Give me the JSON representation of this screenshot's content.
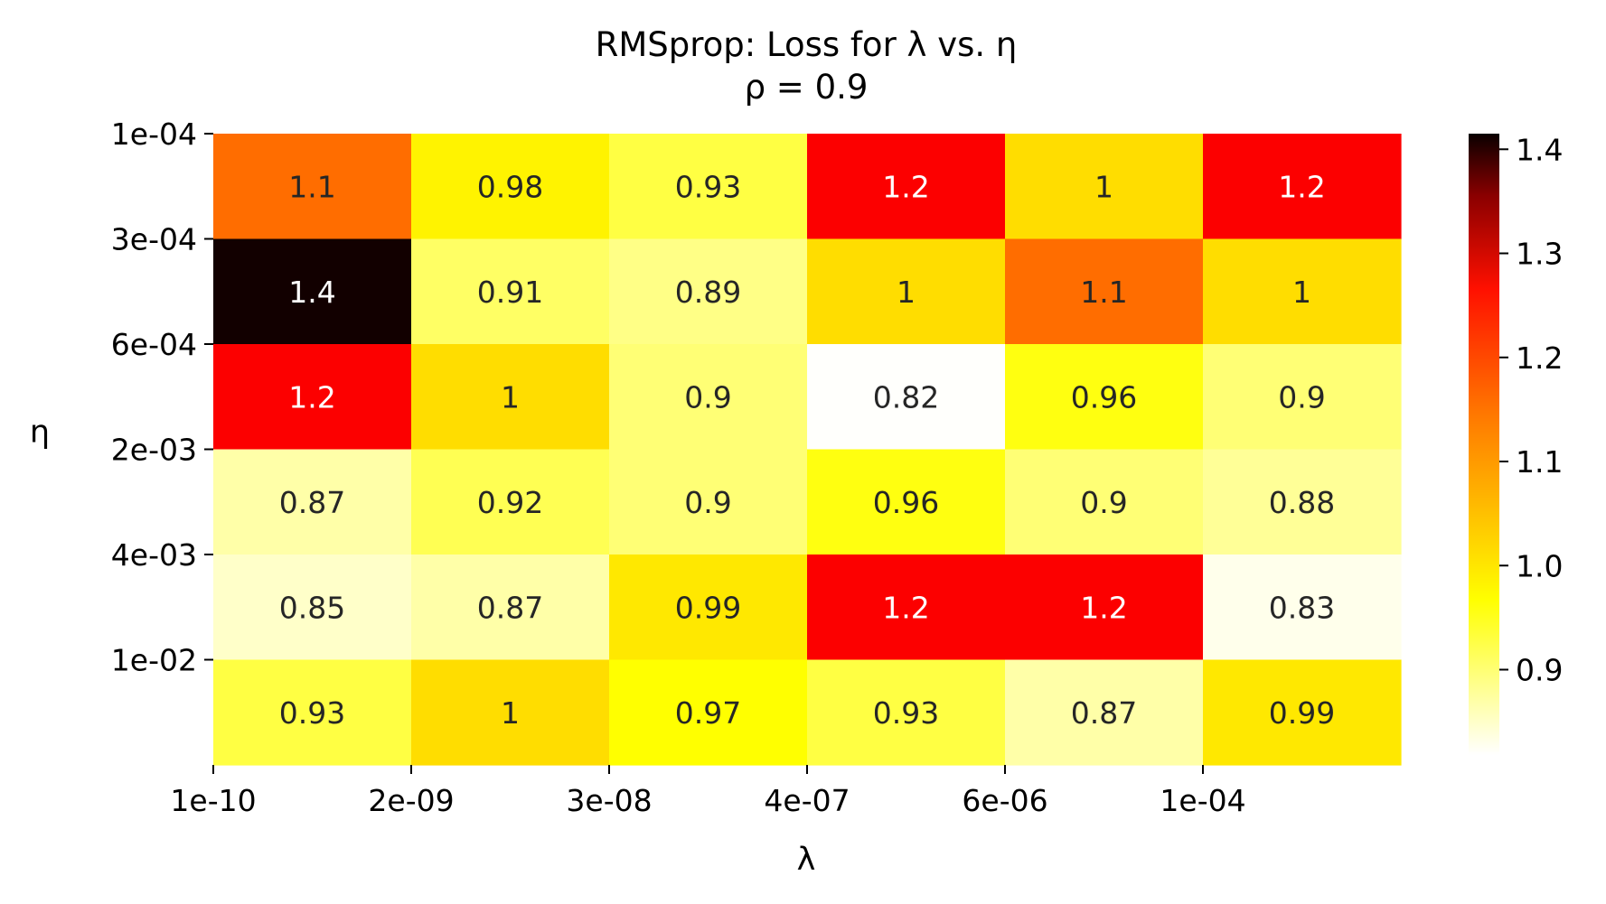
{
  "chart_data": {
    "type": "heatmap",
    "title": "RMSprop: Loss for λ vs. η",
    "subtitle": "ρ = 0.9",
    "xlabel": "λ",
    "ylabel": "η",
    "x_ticks": [
      "1e-10",
      "2e-09",
      "3e-08",
      "4e-07",
      "6e-06",
      "1e-04"
    ],
    "y_ticks": [
      "1e-04",
      "3e-04",
      "6e-04",
      "2e-03",
      "4e-03",
      "1e-02"
    ],
    "values": [
      [
        1.1,
        0.98,
        0.93,
        1.2,
        1.0,
        1.2
      ],
      [
        1.4,
        0.91,
        0.89,
        1.0,
        1.1,
        1.0
      ],
      [
        1.2,
        1.0,
        0.9,
        0.82,
        0.96,
        0.9
      ],
      [
        0.87,
        0.92,
        0.9,
        0.96,
        0.9,
        0.88
      ],
      [
        0.85,
        0.87,
        0.99,
        1.2,
        1.2,
        0.83
      ],
      [
        0.93,
        1.0,
        0.97,
        0.93,
        0.87,
        0.99
      ]
    ],
    "cell_labels": [
      [
        "1.1",
        "0.98",
        "0.93",
        "1.2",
        "1",
        "1.2"
      ],
      [
        "1.4",
        "0.91",
        "0.89",
        "1",
        "1.1",
        "1"
      ],
      [
        "1.2",
        "1",
        "0.9",
        "0.82",
        "0.96",
        "0.9"
      ],
      [
        "0.87",
        "0.92",
        "0.9",
        "0.96",
        "0.9",
        "0.88"
      ],
      [
        "0.85",
        "0.87",
        "0.99",
        "1.2",
        "1.2",
        "0.83"
      ],
      [
        "0.93",
        "1",
        "0.97",
        "0.93",
        "0.87",
        "0.99"
      ]
    ],
    "colorbar": {
      "ticks": [
        "0.9",
        "1.0",
        "1.1",
        "1.2",
        "1.3",
        "1.4"
      ],
      "range": [
        0.818,
        1.415
      ]
    },
    "colormap": "hot_r",
    "grid": false
  }
}
